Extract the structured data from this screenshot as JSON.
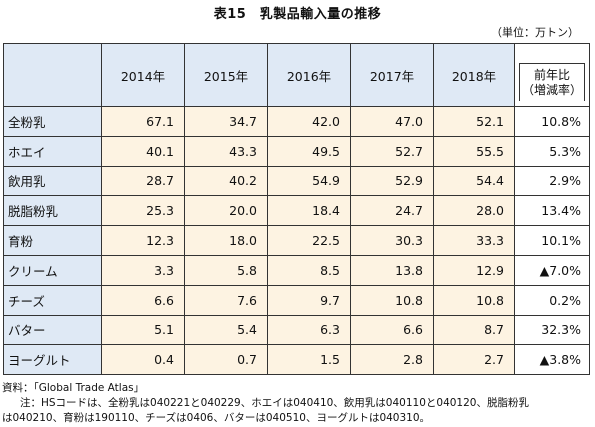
{
  "title": "表15　乳製品輸入量の推移",
  "unit": "（単位：万トン）",
  "table": {
    "years": [
      "2014年",
      "2015年",
      "2016年",
      "2017年",
      "2018年"
    ],
    "yoy_header_line1": "前年比",
    "yoy_header_line2": "（増減率）",
    "rows": [
      {
        "name": "全粉乳",
        "values": [
          "67.1",
          "34.7",
          "42.0",
          "47.0",
          "52.1"
        ],
        "yoy": "10.8%"
      },
      {
        "name": "ホエイ",
        "values": [
          "40.1",
          "43.3",
          "49.5",
          "52.7",
          "55.5"
        ],
        "yoy": "5.3%"
      },
      {
        "name": "飲用乳",
        "values": [
          "28.7",
          "40.2",
          "54.9",
          "52.9",
          "54.4"
        ],
        "yoy": "2.9%"
      },
      {
        "name": "脱脂粉乳",
        "values": [
          "25.3",
          "20.0",
          "18.4",
          "24.7",
          "28.0"
        ],
        "yoy": "13.4%"
      },
      {
        "name": "育粉",
        "values": [
          "12.3",
          "18.0",
          "22.5",
          "30.3",
          "33.3"
        ],
        "yoy": "10.1%"
      },
      {
        "name": "クリーム",
        "values": [
          "3.3",
          "5.8",
          "8.5",
          "13.8",
          "12.9"
        ],
        "yoy": "▲7.0%"
      },
      {
        "name": "チーズ",
        "values": [
          "6.6",
          "7.6",
          "9.7",
          "10.8",
          "10.8"
        ],
        "yoy": "0.2%"
      },
      {
        "name": "バター",
        "values": [
          "5.1",
          "5.4",
          "6.3",
          "6.6",
          "8.7"
        ],
        "yoy": "32.3%"
      },
      {
        "name": "ヨーグルト",
        "values": [
          "0.4",
          "0.7",
          "1.5",
          "2.8",
          "2.7"
        ],
        "yoy": "▲3.8%"
      }
    ]
  },
  "notes": {
    "source": "資料：「Global Trade Atlas」",
    "note_line1": "注：HSコードは、全粉乳は040221と040229、ホエイは040410、飲用乳は040110と040120、脱脂粉乳",
    "note_line2": "は040210、育粉は190110、チーズは0406、バターは040510、ヨーグルトは040310。"
  }
}
